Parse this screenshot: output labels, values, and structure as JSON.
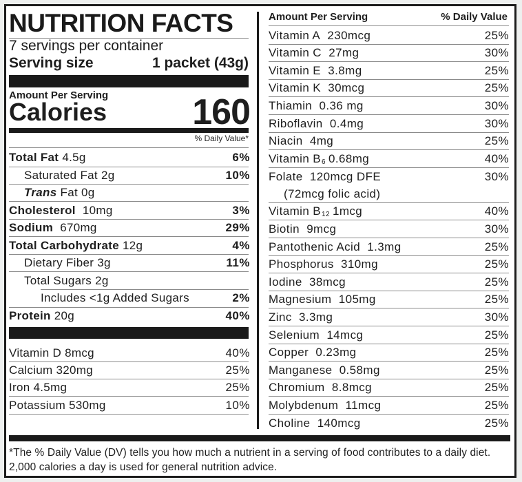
{
  "header": {
    "title": "NUTRITION FACTS",
    "servings_per_container": "7 servings per container",
    "serving_size_label": "Serving size",
    "serving_size_value": "1 packet (43g)"
  },
  "calories": {
    "amount_per_serving": "Amount Per Serving",
    "label": "Calories",
    "value": "160",
    "daily_value_header": "% Daily Value*"
  },
  "macros": [
    {
      "name": "Total Fat",
      "amount": "4.5g",
      "pct": "6%",
      "bold": true,
      "indent": 0
    },
    {
      "name": "Saturated Fat",
      "amount": "2g",
      "pct": "10%",
      "bold": false,
      "indent": 1
    },
    {
      "name": "Trans",
      "suffix": "Fat",
      "amount": "0g",
      "pct": "",
      "bold": false,
      "indent": 1
    },
    {
      "name": "Cholesterol",
      "amount": "10mg",
      "pct": "3%",
      "bold": true,
      "indent": 0
    },
    {
      "name": "Sodium",
      "amount": "670mg",
      "pct": "29%",
      "bold": true,
      "indent": 0
    },
    {
      "name": "Total Carbohydrate",
      "amount": "12g",
      "pct": "4%",
      "bold": true,
      "indent": 0
    },
    {
      "name": "Dietary Fiber",
      "amount": "3g",
      "pct": "11%",
      "bold": false,
      "indent": 1
    },
    {
      "name": "Total Sugars",
      "amount": "2g",
      "pct": "",
      "bold": false,
      "indent": 1
    },
    {
      "name": "Includes <1g Added Sugars",
      "amount": "",
      "pct": "2%",
      "bold": false,
      "indent": 2
    },
    {
      "name": "Protein",
      "amount": "20g",
      "pct": "40%",
      "bold": true,
      "indent": 0
    }
  ],
  "minerals_left": [
    {
      "name": "Vitamin D",
      "amount": "8mcg",
      "pct": "40%"
    },
    {
      "name": "Calcium",
      "amount": "320mg",
      "pct": "25%"
    },
    {
      "name": "Iron",
      "amount": "4.5mg",
      "pct": "25%"
    },
    {
      "name": "Potassium",
      "amount": "530mg",
      "pct": "10%"
    }
  ],
  "right_header": {
    "amount_per_serving": "Amount Per Serving",
    "daily_value": "% Daily Value"
  },
  "vitamins_right": [
    {
      "name": "Vitamin A",
      "amount": "230mcg",
      "pct": "25%"
    },
    {
      "name": "Vitamin C",
      "amount": "27mg",
      "pct": "30%"
    },
    {
      "name": "Vitamin E",
      "amount": "3.8mg",
      "pct": "25%"
    },
    {
      "name": "Vitamin K",
      "amount": "30mcg",
      "pct": "25%"
    },
    {
      "name": "Thiamin",
      "amount": "0.36 mg",
      "pct": "30%"
    },
    {
      "name": "Riboflavin",
      "amount": "0.4mg",
      "pct": "30%"
    },
    {
      "name": "Niacin",
      "amount": "4mg",
      "pct": "25%"
    },
    {
      "name": "Vitamin B",
      "subscript": "6",
      "amount": "0.68mg",
      "pct": "40%"
    },
    {
      "name": "Folate",
      "amount": "120mcg DFE",
      "note": "(72mcg folic acid)",
      "pct": "30%"
    },
    {
      "name": "Vitamin B",
      "subscript": "12",
      "amount": "1mcg",
      "pct": "40%"
    },
    {
      "name": "Biotin",
      "amount": "9mcg",
      "pct": "30%"
    },
    {
      "name": "Pantothenic Acid",
      "amount": "1.3mg",
      "pct": "25%"
    },
    {
      "name": "Phosphorus",
      "amount": "310mg",
      "pct": "25%"
    },
    {
      "name": "Iodine",
      "amount": "38mcg",
      "pct": "25%"
    },
    {
      "name": "Magnesium",
      "amount": "105mg",
      "pct": "25%"
    },
    {
      "name": "Zinc",
      "amount": "3.3mg",
      "pct": "30%"
    },
    {
      "name": "Selenium",
      "amount": "14mcg",
      "pct": "25%"
    },
    {
      "name": "Copper",
      "amount": "0.23mg",
      "pct": "25%"
    },
    {
      "name": "Manganese",
      "amount": "0.58mg",
      "pct": "25%"
    },
    {
      "name": "Chromium",
      "amount": "8.8mcg",
      "pct": "25%"
    },
    {
      "name": "Molybdenum",
      "amount": "11mcg",
      "pct": "25%"
    },
    {
      "name": "Choline",
      "amount": "140mcg",
      "pct": "25%"
    }
  ],
  "footnote": "*The % Daily Value (DV) tells you how much a nutrient in a serving of food contributes to a daily diet. 2,000 calories a day is used for general nutrition advice."
}
